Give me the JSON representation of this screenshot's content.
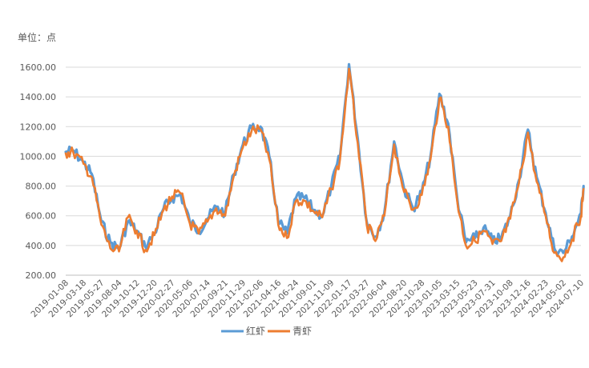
{
  "chart_data": {
    "type": "line",
    "unit_label": "单位：点",
    "ylim": [
      200,
      1600
    ],
    "y_ticks": [
      "200.00",
      "400.00",
      "600.00",
      "800.00",
      "1000.00",
      "1200.00",
      "1400.00",
      "1600.00"
    ],
    "x_ticks": [
      "2019-01-08",
      "2019-03-18",
      "2019-05-27",
      "2019-08-04",
      "2019-10-12",
      "2019-12-20",
      "2020-02-27",
      "2020-05-06",
      "2020-07-14",
      "2020-09-21",
      "2020-11-29",
      "2021-02-06",
      "2021-04-16",
      "2021-06-24",
      "2021-09-01",
      "2021-11-09",
      "2022-01-17",
      "2022-03-27",
      "2022-06-04",
      "2022-08-20",
      "2022-10-28",
      "2023-01-05",
      "2023-03-15",
      "2023-05-23",
      "2023-07-31",
      "2023-10-08",
      "2023-12-16",
      "2024-02-23",
      "2024-05-02",
      "2024-07-10"
    ],
    "grid": true,
    "legend_position": "bottom",
    "x": [
      "2019-01-08",
      "2019-02-06",
      "2019-03-18",
      "2019-04-20",
      "2019-05-27",
      "2019-07-01",
      "2019-08-04",
      "2019-09-08",
      "2019-10-12",
      "2019-11-15",
      "2019-12-20",
      "2020-01-25",
      "2020-02-27",
      "2020-04-01",
      "2020-05-06",
      "2020-06-10",
      "2020-07-14",
      "2020-08-17",
      "2020-09-21",
      "2020-10-25",
      "2020-11-29",
      "2021-01-02",
      "2021-02-06",
      "2021-03-12",
      "2021-04-16",
      "2021-05-20",
      "2021-06-24",
      "2021-07-28",
      "2021-09-01",
      "2021-10-05",
      "2021-11-09",
      "2021-12-13",
      "2022-01-17",
      "2022-02-20",
      "2022-03-27",
      "2022-04-30",
      "2022-06-04",
      "2022-07-12",
      "2022-08-20",
      "2022-09-24",
      "2022-10-28",
      "2022-12-01",
      "2023-01-05",
      "2023-02-08",
      "2023-03-15",
      "2023-04-18",
      "2023-05-23",
      "2023-06-26",
      "2023-07-31",
      "2023-09-03",
      "2023-10-08",
      "2023-11-11",
      "2023-12-16",
      "2024-01-19",
      "2024-02-23",
      "2024-03-28",
      "2024-05-02",
      "2024-06-05",
      "2024-07-10",
      "2024-07-20"
    ],
    "series": [
      {
        "name": "红虾",
        "color": "#5B9BD5",
        "values": [
          1030,
          1040,
          960,
          880,
          560,
          420,
          380,
          560,
          500,
          390,
          480,
          650,
          720,
          740,
          560,
          500,
          580,
          660,
          620,
          880,
          1080,
          1190,
          1200,
          1000,
          560,
          480,
          720,
          720,
          640,
          600,
          800,
          1000,
          1620,
          1120,
          560,
          460,
          620,
          1100,
          780,
          650,
          760,
          1000,
          1420,
          1220,
          720,
          420,
          450,
          520,
          430,
          450,
          600,
          840,
          1180,
          860,
          620,
          380,
          350,
          460,
          620,
          800
        ]
      },
      {
        "name": "青虾",
        "color": "#ED7D31",
        "values": [
          1020,
          1030,
          950,
          860,
          540,
          380,
          360,
          590,
          500,
          370,
          470,
          640,
          730,
          750,
          550,
          480,
          560,
          650,
          600,
          870,
          1060,
          1170,
          1180,
          980,
          540,
          450,
          700,
          700,
          630,
          590,
          780,
          980,
          1590,
          1090,
          540,
          430,
          600,
          1080,
          760,
          640,
          740,
          980,
          1390,
          1200,
          700,
          400,
          430,
          500,
          410,
          430,
          580,
          820,
          1160,
          830,
          600,
          350,
          320,
          440,
          600,
          780
        ]
      }
    ]
  }
}
